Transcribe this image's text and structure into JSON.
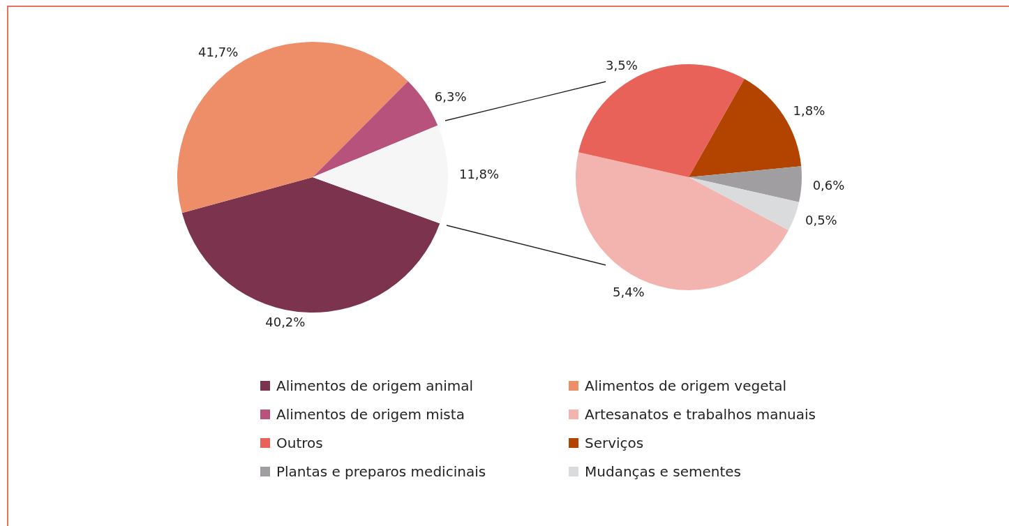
{
  "chart_data": [
    {
      "type": "pie",
      "categories": [
        "Alimentos de origem animal",
        "Alimentos de origem vegetal",
        "Alimentos de origem mista",
        null
      ],
      "values": [
        40.2,
        41.7,
        6.3,
        11.8
      ],
      "colors": [
        "#7b334e",
        "#ee8e69",
        "#b6527c",
        "#f5f6f5"
      ],
      "value_labels": [
        "40,2%",
        "41,7%",
        "6,3%",
        "11,8%"
      ],
      "legend": "bottom"
    },
    {
      "type": "pie",
      "categories": [
        "Artesanatos e trabalhos manuais",
        "Outros",
        "Serviços",
        "Plantas e preparos medicinais",
        "Mudanças e sementes"
      ],
      "values": [
        5.4,
        3.5,
        1.8,
        0.6,
        0.5
      ],
      "colors": [
        "#f3b3ae",
        "#e8625a",
        "#b34400",
        "#a09ea1",
        "#dadbdd"
      ],
      "value_labels": [
        "5,4%",
        "3,5%",
        "1,8%",
        "0,6%",
        "0,5%"
      ],
      "legend": "bottom"
    }
  ]
}
